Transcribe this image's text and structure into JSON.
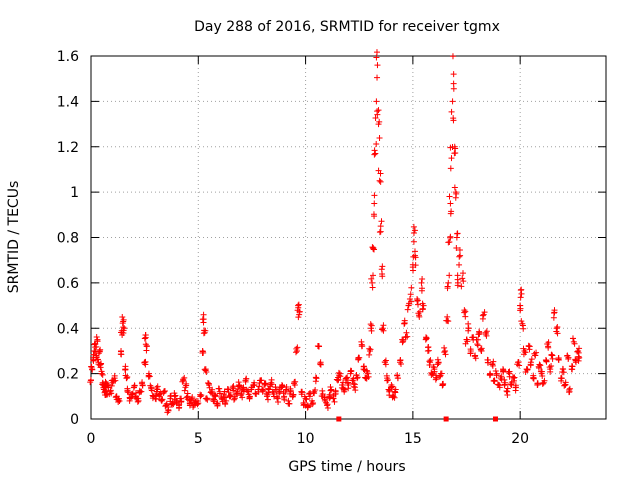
{
  "chart_data": {
    "type": "scatter",
    "title": "Day 288 of 2016, SRMTID for receiver tgmx",
    "xlabel": "GPS time / hours",
    "ylabel": "SRMTID / TECUs",
    "xlim": [
      0,
      24
    ],
    "ylim": [
      0,
      1.6
    ],
    "xticks": [
      0,
      5,
      10,
      15,
      20
    ],
    "xtick_labels": [
      "0",
      "5",
      "10",
      "15",
      "20"
    ],
    "yticks": [
      0,
      0.2,
      0.4,
      0.6,
      0.8,
      1.0,
      1.2,
      1.4,
      1.6
    ],
    "ytick_labels": [
      "0",
      "0.2",
      "0.4",
      "0.6",
      "0.8",
      "1",
      "1.2",
      "1.4",
      "1.6"
    ],
    "grid": true,
    "marker": "+",
    "color": "#ff0000",
    "series": [
      {
        "name": "SRMTID",
        "points": [
          [
            0.0,
            0.17
          ],
          [
            0.05,
            0.22
          ],
          [
            0.1,
            0.27
          ],
          [
            0.15,
            0.3
          ],
          [
            0.2,
            0.33
          ],
          [
            0.25,
            0.28
          ],
          [
            0.3,
            0.35
          ],
          [
            0.35,
            0.25
          ],
          [
            0.4,
            0.3
          ],
          [
            0.45,
            0.24
          ],
          [
            0.5,
            0.2
          ],
          [
            0.55,
            0.16
          ],
          [
            0.6,
            0.13
          ],
          [
            0.65,
            0.12
          ],
          [
            0.7,
            0.15
          ],
          [
            0.75,
            0.11
          ],
          [
            0.8,
            0.14
          ],
          [
            0.9,
            0.12
          ],
          [
            1.0,
            0.16
          ],
          [
            1.1,
            0.18
          ],
          [
            1.2,
            0.1
          ],
          [
            1.3,
            0.09
          ],
          [
            1.4,
            0.3
          ],
          [
            1.45,
            0.37
          ],
          [
            1.5,
            0.43
          ],
          [
            1.55,
            0.4
          ],
          [
            1.6,
            0.22
          ],
          [
            1.65,
            0.18
          ],
          [
            1.7,
            0.12
          ],
          [
            1.8,
            0.08
          ],
          [
            1.9,
            0.11
          ],
          [
            2.0,
            0.14
          ],
          [
            2.1,
            0.1
          ],
          [
            2.2,
            0.09
          ],
          [
            2.3,
            0.12
          ],
          [
            2.4,
            0.15
          ],
          [
            2.5,
            0.25
          ],
          [
            2.55,
            0.37
          ],
          [
            2.6,
            0.32
          ],
          [
            2.7,
            0.2
          ],
          [
            2.8,
            0.14
          ],
          [
            2.9,
            0.1
          ],
          [
            3.0,
            0.09
          ],
          [
            3.1,
            0.13
          ],
          [
            3.2,
            0.11
          ],
          [
            3.3,
            0.08
          ],
          [
            3.4,
            0.12
          ],
          [
            3.5,
            0.06
          ],
          [
            3.6,
            0.04
          ],
          [
            3.7,
            0.09
          ],
          [
            3.8,
            0.07
          ],
          [
            3.9,
            0.1
          ],
          [
            4.0,
            0.08
          ],
          [
            4.1,
            0.06
          ],
          [
            4.2,
            0.09
          ],
          [
            4.3,
            0.17
          ],
          [
            4.4,
            0.14
          ],
          [
            4.5,
            0.1
          ],
          [
            4.6,
            0.07
          ],
          [
            4.7,
            0.09
          ],
          [
            4.8,
            0.06
          ],
          [
            4.9,
            0.08
          ],
          [
            5.0,
            0.07
          ],
          [
            5.1,
            0.1
          ],
          [
            5.2,
            0.3
          ],
          [
            5.25,
            0.44
          ],
          [
            5.3,
            0.38
          ],
          [
            5.35,
            0.22
          ],
          [
            5.4,
            0.09
          ],
          [
            5.5,
            0.15
          ],
          [
            5.6,
            0.12
          ],
          [
            5.7,
            0.08
          ],
          [
            5.8,
            0.1
          ],
          [
            5.9,
            0.07
          ],
          [
            6.0,
            0.12
          ],
          [
            6.1,
            0.09
          ],
          [
            6.2,
            0.11
          ],
          [
            6.3,
            0.08
          ],
          [
            6.4,
            0.13
          ],
          [
            6.5,
            0.1
          ],
          [
            6.6,
            0.14
          ],
          [
            6.7,
            0.09
          ],
          [
            6.8,
            0.12
          ],
          [
            6.9,
            0.15
          ],
          [
            7.0,
            0.11
          ],
          [
            7.1,
            0.13
          ],
          [
            7.2,
            0.17
          ],
          [
            7.3,
            0.12
          ],
          [
            7.4,
            0.1
          ],
          [
            7.5,
            0.14
          ],
          [
            7.6,
            0.16
          ],
          [
            7.7,
            0.11
          ],
          [
            7.8,
            0.13
          ],
          [
            7.9,
            0.17
          ],
          [
            8.0,
            0.12
          ],
          [
            8.1,
            0.15
          ],
          [
            8.2,
            0.1
          ],
          [
            8.3,
            0.13
          ],
          [
            8.4,
            0.16
          ],
          [
            8.5,
            0.11
          ],
          [
            8.6,
            0.14
          ],
          [
            8.7,
            0.09
          ],
          [
            8.8,
            0.12
          ],
          [
            8.9,
            0.15
          ],
          [
            9.0,
            0.1
          ],
          [
            9.1,
            0.13
          ],
          [
            9.2,
            0.08
          ],
          [
            9.3,
            0.12
          ],
          [
            9.4,
            0.1
          ],
          [
            9.5,
            0.15
          ],
          [
            9.6,
            0.3
          ],
          [
            9.65,
            0.5
          ],
          [
            9.7,
            0.46
          ],
          [
            9.8,
            0.12
          ],
          [
            9.9,
            0.07
          ],
          [
            10.0,
            0.09
          ],
          [
            10.1,
            0.06
          ],
          [
            10.2,
            0.1
          ],
          [
            10.3,
            0.08
          ],
          [
            10.4,
            0.12
          ],
          [
            10.5,
            0.18
          ],
          [
            10.6,
            0.32
          ],
          [
            10.7,
            0.25
          ],
          [
            10.8,
            0.11
          ],
          [
            10.9,
            0.08
          ],
          [
            11.0,
            0.06
          ],
          [
            11.1,
            0.1
          ],
          [
            11.2,
            0.13
          ],
          [
            11.3,
            0.09
          ],
          [
            11.4,
            0.12
          ],
          [
            11.5,
            0.17
          ],
          [
            11.6,
            0.2
          ],
          [
            11.7,
            0.15
          ],
          [
            11.8,
            0.12
          ],
          [
            11.9,
            0.18
          ],
          [
            12.0,
            0.15
          ],
          [
            12.1,
            0.2
          ],
          [
            12.2,
            0.17
          ],
          [
            12.3,
            0.14
          ],
          [
            12.4,
            0.18
          ],
          [
            12.5,
            0.27
          ],
          [
            12.6,
            0.34
          ],
          [
            12.7,
            0.22
          ],
          [
            12.8,
            0.18
          ],
          [
            12.9,
            0.2
          ],
          [
            13.0,
            0.3
          ],
          [
            13.05,
            0.4
          ],
          [
            13.1,
            0.6
          ],
          [
            13.15,
            0.75
          ],
          [
            13.2,
            0.95
          ],
          [
            13.25,
            1.17
          ],
          [
            13.3,
            1.4
          ],
          [
            13.35,
            1.56
          ],
          [
            13.4,
            1.3
          ],
          [
            13.45,
            1.05
          ],
          [
            13.5,
            0.85
          ],
          [
            13.55,
            0.66
          ],
          [
            13.6,
            0.4
          ],
          [
            13.7,
            0.25
          ],
          [
            13.8,
            0.18
          ],
          [
            13.9,
            0.12
          ],
          [
            14.0,
            0.15
          ],
          [
            14.1,
            0.1
          ],
          [
            14.2,
            0.13
          ],
          [
            14.3,
            0.18
          ],
          [
            14.4,
            0.25
          ],
          [
            14.5,
            0.35
          ],
          [
            14.6,
            0.42
          ],
          [
            14.7,
            0.38
          ],
          [
            14.8,
            0.5
          ],
          [
            14.9,
            0.55
          ],
          [
            15.0,
            0.68
          ],
          [
            15.05,
            0.82
          ],
          [
            15.1,
            0.72
          ],
          [
            15.2,
            0.52
          ],
          [
            15.3,
            0.45
          ],
          [
            15.4,
            0.6
          ],
          [
            15.5,
            0.5
          ],
          [
            15.6,
            0.35
          ],
          [
            15.7,
            0.3
          ],
          [
            15.8,
            0.25
          ],
          [
            15.9,
            0.2
          ],
          [
            16.0,
            0.22
          ],
          [
            16.1,
            0.18
          ],
          [
            16.2,
            0.25
          ],
          [
            16.3,
            0.2
          ],
          [
            16.4,
            0.15
          ],
          [
            16.5,
            0.3
          ],
          [
            16.6,
            0.45
          ],
          [
            16.65,
            0.6
          ],
          [
            16.7,
            0.78
          ],
          [
            16.75,
            0.95
          ],
          [
            16.8,
            1.15
          ],
          [
            16.85,
            1.4
          ],
          [
            16.9,
            1.52
          ],
          [
            16.95,
            1.2
          ],
          [
            17.0,
            1.0
          ],
          [
            17.05,
            0.8
          ],
          [
            17.1,
            0.6
          ],
          [
            17.2,
            0.72
          ],
          [
            17.3,
            0.62
          ],
          [
            17.4,
            0.48
          ],
          [
            17.5,
            0.35
          ],
          [
            17.6,
            0.4
          ],
          [
            17.7,
            0.3
          ],
          [
            17.8,
            0.36
          ],
          [
            17.9,
            0.28
          ],
          [
            18.0,
            0.33
          ],
          [
            18.1,
            0.38
          ],
          [
            18.2,
            0.3
          ],
          [
            18.3,
            0.46
          ],
          [
            18.4,
            0.38
          ],
          [
            18.5,
            0.26
          ],
          [
            18.6,
            0.2
          ],
          [
            18.7,
            0.24
          ],
          [
            18.8,
            0.17
          ],
          [
            18.9,
            0.2
          ],
          [
            19.0,
            0.15
          ],
          [
            19.1,
            0.18
          ],
          [
            19.2,
            0.22
          ],
          [
            19.3,
            0.16
          ],
          [
            19.4,
            0.12
          ],
          [
            19.5,
            0.2
          ],
          [
            19.6,
            0.15
          ],
          [
            19.7,
            0.18
          ],
          [
            19.8,
            0.14
          ],
          [
            19.9,
            0.25
          ],
          [
            20.0,
            0.5
          ],
          [
            20.05,
            0.57
          ],
          [
            20.1,
            0.42
          ],
          [
            20.2,
            0.3
          ],
          [
            20.3,
            0.22
          ],
          [
            20.4,
            0.32
          ],
          [
            20.5,
            0.25
          ],
          [
            20.6,
            0.18
          ],
          [
            20.7,
            0.28
          ],
          [
            20.8,
            0.15
          ],
          [
            20.9,
            0.24
          ],
          [
            21.0,
            0.2
          ],
          [
            21.1,
            0.16
          ],
          [
            21.2,
            0.26
          ],
          [
            21.3,
            0.32
          ],
          [
            21.4,
            0.22
          ],
          [
            21.5,
            0.28
          ],
          [
            21.6,
            0.47
          ],
          [
            21.7,
            0.4
          ],
          [
            21.8,
            0.26
          ],
          [
            21.9,
            0.18
          ],
          [
            22.0,
            0.22
          ],
          [
            22.1,
            0.15
          ],
          [
            22.2,
            0.28
          ],
          [
            22.3,
            0.12
          ],
          [
            22.4,
            0.22
          ],
          [
            22.5,
            0.34
          ],
          [
            22.6,
            0.25
          ],
          [
            22.7,
            0.3
          ],
          [
            22.75,
            0.27
          ]
        ]
      },
      {
        "name": "gaps",
        "marker": "square",
        "points": [
          [
            11.55,
            0.0
          ],
          [
            16.55,
            0.0
          ],
          [
            18.85,
            0.0
          ]
        ]
      }
    ]
  }
}
